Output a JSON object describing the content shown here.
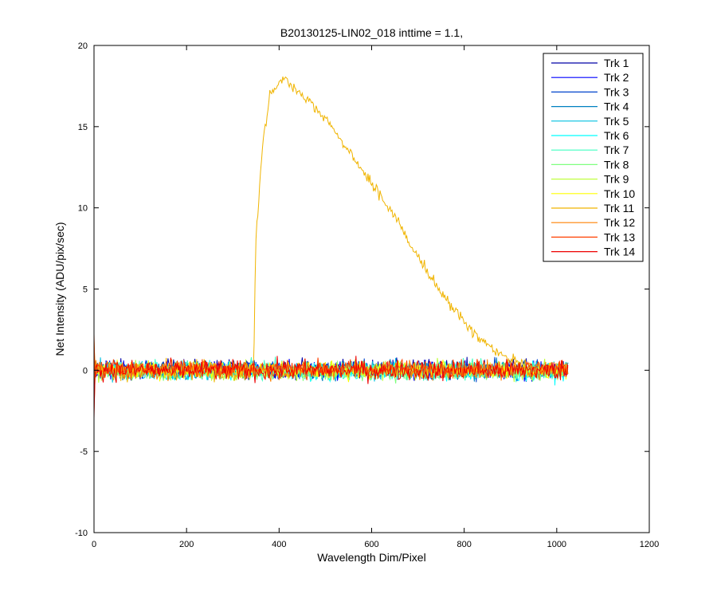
{
  "chart_data": {
    "type": "line",
    "title": "B20130125-LIN02_018 inttime = 1.1,",
    "xlabel": "Wavelength Dim/Pixel",
    "ylabel": "Net Intensity (ADU/pix/sec)",
    "xlim": [
      0,
      1200
    ],
    "ylim": [
      -10,
      20
    ],
    "xticks": [
      0,
      200,
      400,
      600,
      800,
      1000,
      1200
    ],
    "yticks": [
      -10,
      -5,
      0,
      5,
      10,
      15,
      20
    ],
    "grid": false,
    "legend_position": "top-right",
    "noise_x_range": [
      0,
      1024
    ],
    "series": [
      {
        "name": "Trk 1",
        "color": "#0000a8",
        "baseline": 0.1,
        "noise": 0.4
      },
      {
        "name": "Trk 2",
        "color": "#0000ff",
        "baseline": 0.0,
        "noise": 0.4
      },
      {
        "name": "Trk 3",
        "color": "#0044cc",
        "baseline": 0.0,
        "noise": 0.4
      },
      {
        "name": "Trk 4",
        "color": "#0080c0",
        "baseline": 0.0,
        "noise": 0.4
      },
      {
        "name": "Trk 5",
        "color": "#00c0e0",
        "baseline": 0.0,
        "noise": 0.4
      },
      {
        "name": "Trk 6",
        "color": "#00ffff",
        "baseline": -0.1,
        "noise": 0.4
      },
      {
        "name": "Trk 7",
        "color": "#40ffc0",
        "baseline": 0.0,
        "noise": 0.4
      },
      {
        "name": "Trk 8",
        "color": "#80ff80",
        "baseline": -0.1,
        "noise": 0.4
      },
      {
        "name": "Trk 9",
        "color": "#c0ff40",
        "baseline": 0.0,
        "noise": 0.4
      },
      {
        "name": "Trk 10",
        "color": "#ffff00",
        "baseline": 0.0,
        "noise": 0.4
      },
      {
        "name": "Trk 11",
        "color": "#f0b400",
        "baseline": 0.0,
        "noise": 0.4,
        "peak_points": [
          [
            345,
            0.5
          ],
          [
            350,
            8
          ],
          [
            365,
            14
          ],
          [
            380,
            17
          ],
          [
            410,
            18
          ],
          [
            450,
            17
          ],
          [
            500,
            15.5
          ],
          [
            550,
            13.5
          ],
          [
            600,
            11.5
          ],
          [
            650,
            9.5
          ],
          [
            700,
            7
          ],
          [
            750,
            4.8
          ],
          [
            800,
            2.9
          ],
          [
            850,
            1.5
          ],
          [
            900,
            0.6
          ],
          [
            950,
            0.2
          ],
          [
            1024,
            0.1
          ]
        ]
      },
      {
        "name": "Trk 12",
        "color": "#ff8000",
        "baseline": 0.0,
        "noise": 0.4
      },
      {
        "name": "Trk 13",
        "color": "#ff4000",
        "baseline": 0.1,
        "noise": 0.4
      },
      {
        "name": "Trk 14",
        "color": "#ee0000",
        "baseline": 0.0,
        "noise": 0.45
      }
    ]
  }
}
